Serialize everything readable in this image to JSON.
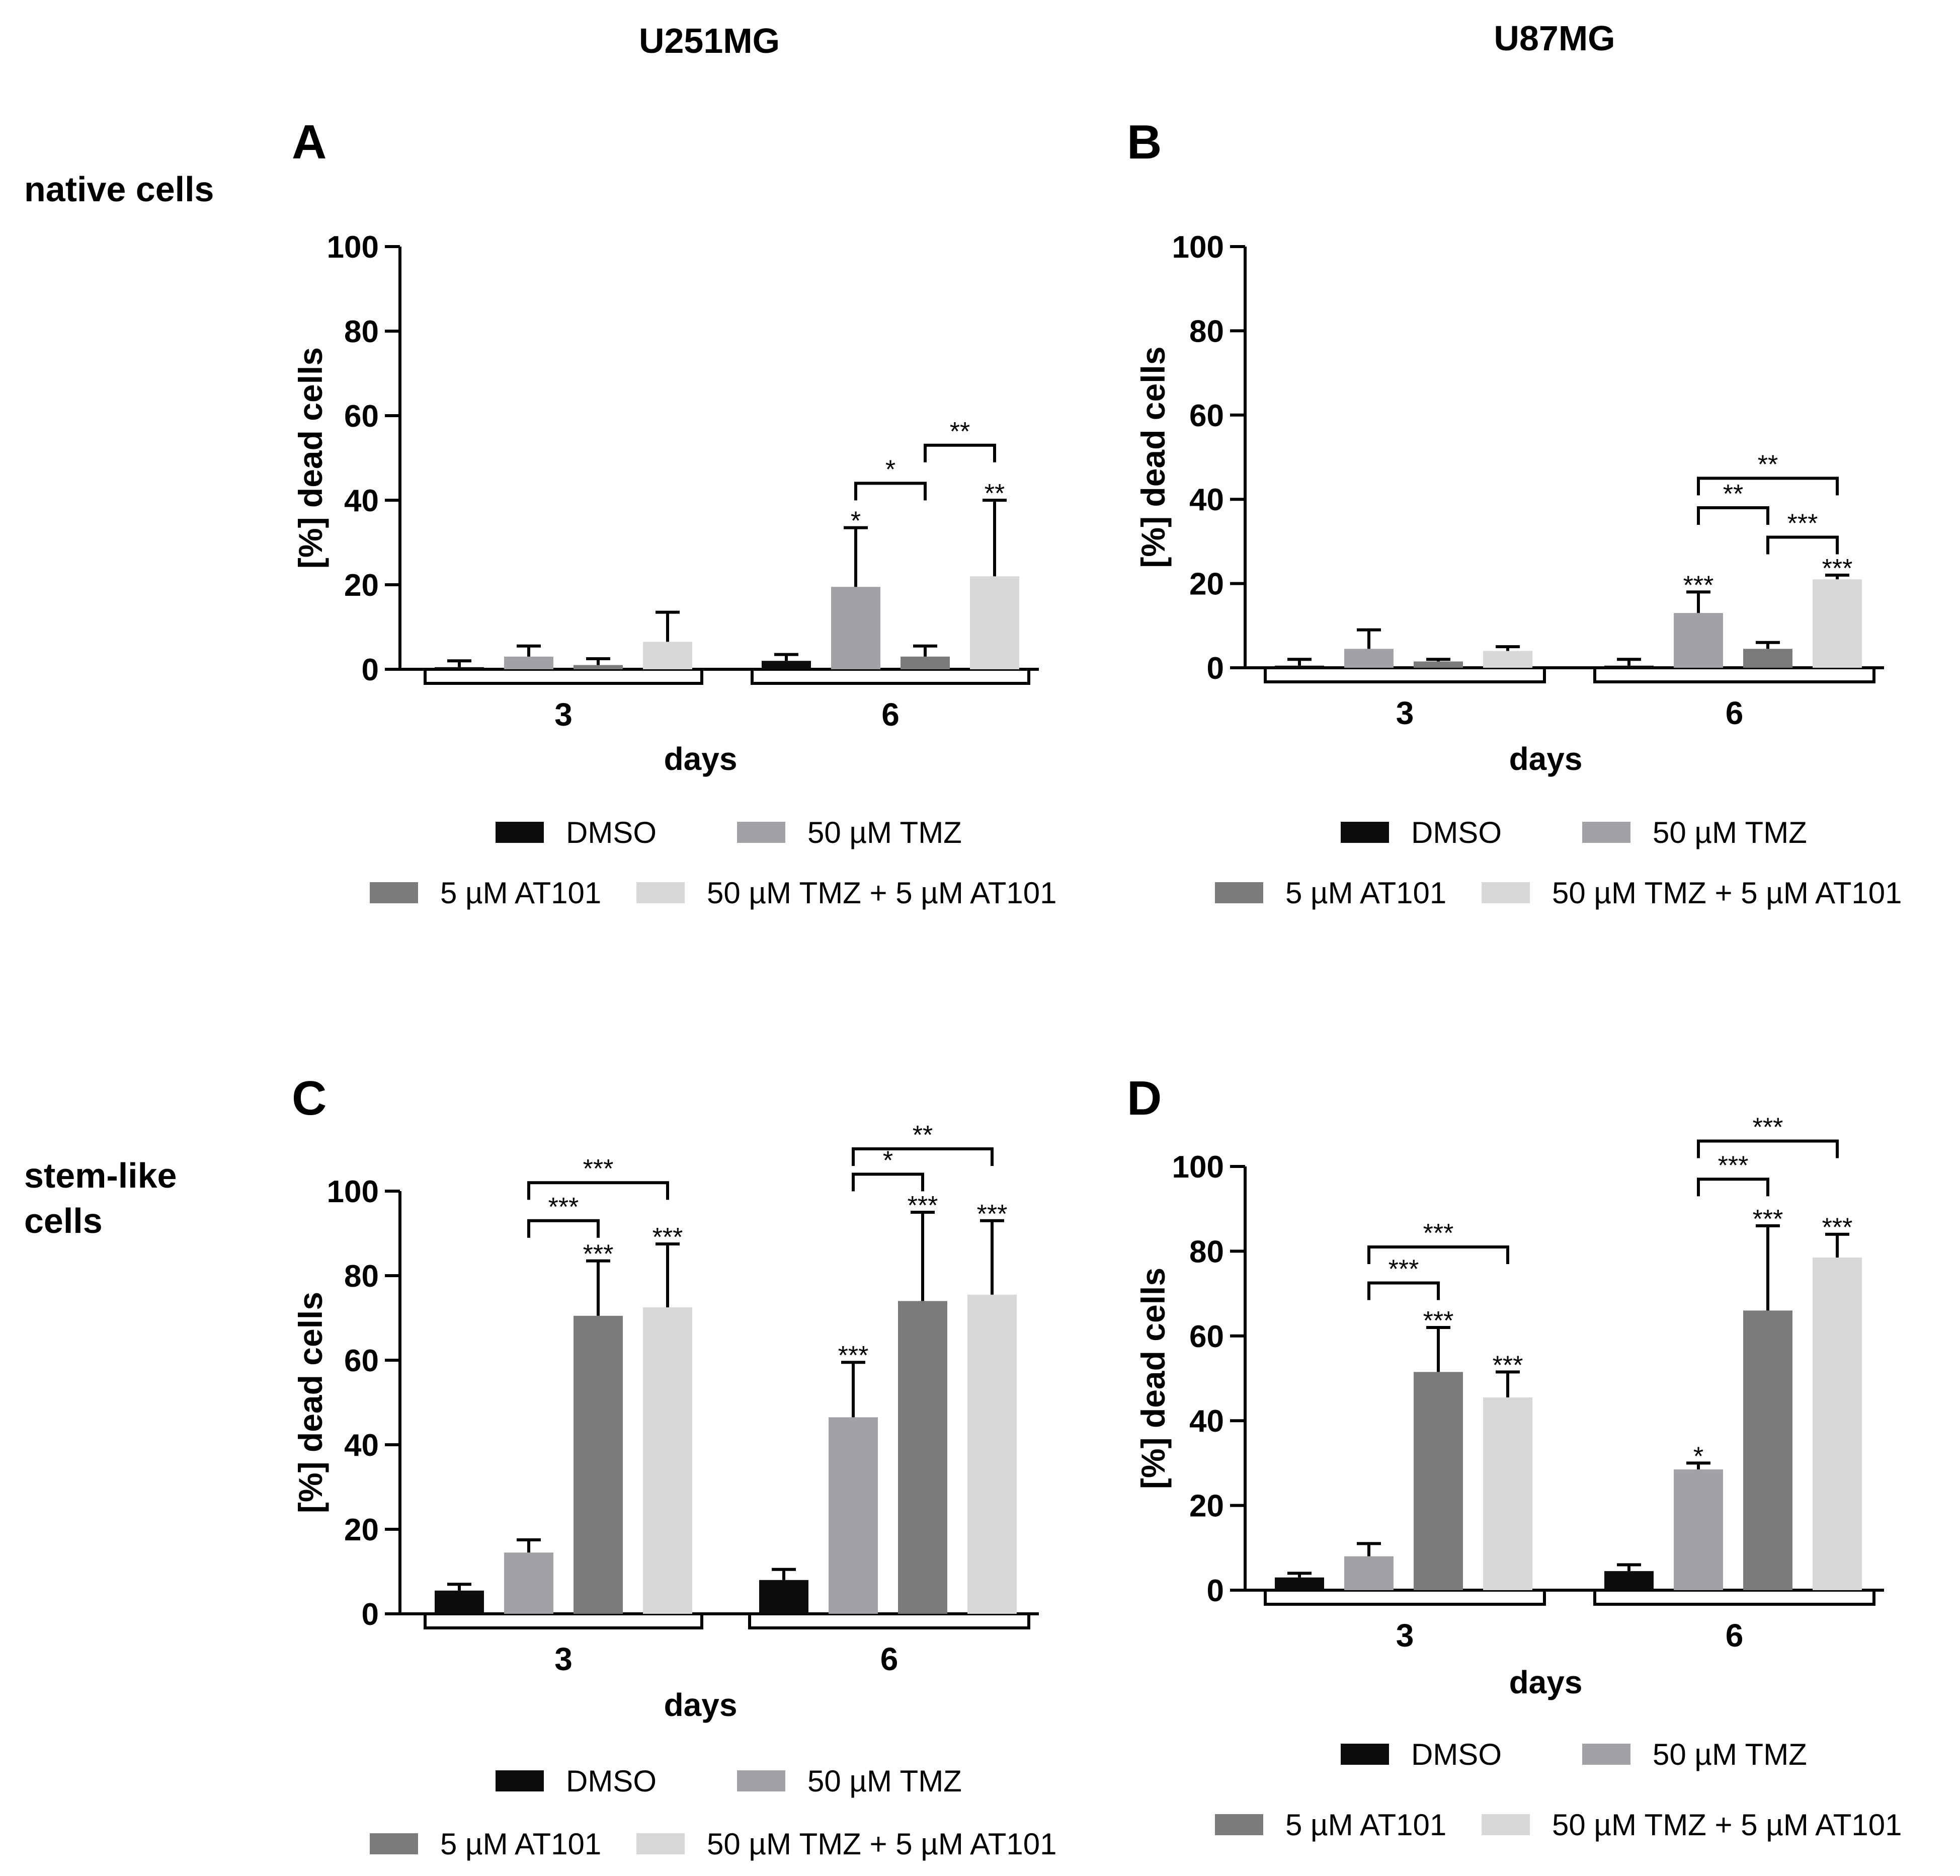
{
  "figure": {
    "column_titles": [
      "U251MG",
      "U87MG"
    ],
    "row_titles": [
      [
        "native cells"
      ],
      [
        "stem-like",
        "cells"
      ]
    ],
    "legend_labels": [
      "DMSO",
      "50 µM TMZ",
      "5 µM AT101",
      "50 µM TMZ + 5 µM AT101"
    ]
  },
  "colors": {
    "series": [
      "#0d0d0d",
      "#a2a2a6",
      "#7b7b7b",
      "#d8d8d8"
    ],
    "axis": "#000000"
  },
  "chart_data": [
    {
      "panel": "A",
      "type": "bar",
      "ylabel": "[%] dead cells",
      "xlabel": "days",
      "ylim": [
        0,
        100
      ],
      "yticks": [
        0,
        20,
        40,
        60,
        80,
        100
      ],
      "categories": [
        "3",
        "6"
      ],
      "series": [
        {
          "name": "DMSO",
          "values": [
            0.5,
            2
          ],
          "errors": [
            1.5,
            1.5
          ],
          "sig": [
            "",
            ""
          ]
        },
        {
          "name": "50 µM TMZ",
          "values": [
            3,
            19.5
          ],
          "errors": [
            2.5,
            14
          ],
          "sig": [
            "",
            "*"
          ]
        },
        {
          "name": "5 µM AT101",
          "values": [
            1,
            3
          ],
          "errors": [
            1.5,
            2.5
          ],
          "sig": [
            "",
            ""
          ]
        },
        {
          "name": "50 µM TMZ + 5 µM AT101",
          "values": [
            6.5,
            22
          ],
          "errors": [
            7,
            18
          ],
          "sig": [
            "",
            "**"
          ]
        }
      ],
      "brackets": [
        {
          "group": 1,
          "from": 1,
          "to": 2,
          "level": 44,
          "label": "*"
        },
        {
          "group": 1,
          "from": 2,
          "to": 3,
          "level": 53,
          "label": "**"
        }
      ]
    },
    {
      "panel": "B",
      "type": "bar",
      "ylabel": "[%] dead cells",
      "xlabel": "days",
      "ylim": [
        0,
        100
      ],
      "yticks": [
        0,
        20,
        40,
        60,
        80,
        100
      ],
      "categories": [
        "3",
        "6"
      ],
      "series": [
        {
          "name": "DMSO",
          "values": [
            0.5,
            0.5
          ],
          "errors": [
            1.5,
            1.5
          ],
          "sig": [
            "",
            ""
          ]
        },
        {
          "name": "50 µM TMZ",
          "values": [
            4.5,
            13
          ],
          "errors": [
            4.5,
            5
          ],
          "sig": [
            "",
            "***"
          ]
        },
        {
          "name": "5 µM AT101",
          "values": [
            1.5,
            4.5
          ],
          "errors": [
            0.5,
            1.5
          ],
          "sig": [
            "",
            ""
          ]
        },
        {
          "name": "50 µM TMZ + 5 µM AT101",
          "values": [
            4,
            21
          ],
          "errors": [
            1,
            1
          ],
          "sig": [
            "",
            "***"
          ]
        }
      ],
      "brackets": [
        {
          "group": 1,
          "from": 2,
          "to": 3,
          "level": 31,
          "label": "***"
        },
        {
          "group": 1,
          "from": 1,
          "to": 2,
          "level": 38,
          "label": "**"
        },
        {
          "group": 1,
          "from": 1,
          "to": 3,
          "level": 45,
          "label": "**"
        }
      ]
    },
    {
      "panel": "C",
      "type": "bar",
      "ylabel": "[%] dead cells",
      "xlabel": "days",
      "ylim": [
        0,
        100
      ],
      "yticks": [
        0,
        20,
        40,
        60,
        80,
        100
      ],
      "categories": [
        "3",
        "6"
      ],
      "series": [
        {
          "name": "DMSO",
          "values": [
            5.5,
            8
          ],
          "errors": [
            1.5,
            2.5
          ],
          "sig": [
            "",
            ""
          ]
        },
        {
          "name": "50 µM TMZ",
          "values": [
            14.5,
            46.5
          ],
          "errors": [
            3,
            13
          ],
          "sig": [
            "",
            "***"
          ]
        },
        {
          "name": "5 µM AT101",
          "values": [
            70.5,
            74
          ],
          "errors": [
            13,
            21
          ],
          "sig": [
            "***",
            "***"
          ]
        },
        {
          "name": "50 µM TMZ + 5 µM AT101",
          "values": [
            72.5,
            75.5
          ],
          "errors": [
            15,
            17.5
          ],
          "sig": [
            "***",
            "***"
          ]
        }
      ],
      "brackets": [
        {
          "group": 0,
          "from": 1,
          "to": 2,
          "level": 93,
          "label": "***"
        },
        {
          "group": 0,
          "from": 1,
          "to": 3,
          "level": 102,
          "label": "***"
        },
        {
          "group": 1,
          "from": 1,
          "to": 2,
          "level": 104,
          "label": "*"
        },
        {
          "group": 1,
          "from": 1,
          "to": 3,
          "level": 110,
          "label": "**"
        }
      ]
    },
    {
      "panel": "D",
      "type": "bar",
      "ylabel": "[%] dead cells",
      "xlabel": "days",
      "ylim": [
        0,
        100
      ],
      "yticks": [
        0,
        20,
        40,
        60,
        80,
        100
      ],
      "categories": [
        "3",
        "6"
      ],
      "series": [
        {
          "name": "DMSO",
          "values": [
            3,
            4.5
          ],
          "errors": [
            1,
            1.5
          ],
          "sig": [
            "",
            ""
          ]
        },
        {
          "name": "50 µM TMZ",
          "values": [
            8,
            28.5
          ],
          "errors": [
            3,
            1.5
          ],
          "sig": [
            "",
            "*"
          ]
        },
        {
          "name": "5 µM AT101",
          "values": [
            51.5,
            66
          ],
          "errors": [
            10.5,
            20
          ],
          "sig": [
            "***",
            "***"
          ]
        },
        {
          "name": "50 µM TMZ + 5 µM AT101",
          "values": [
            45.5,
            78.5
          ],
          "errors": [
            6,
            5.5
          ],
          "sig": [
            "***",
            "***"
          ]
        }
      ],
      "brackets": [
        {
          "group": 0,
          "from": 1,
          "to": 2,
          "level": 72.5,
          "label": "***"
        },
        {
          "group": 0,
          "from": 1,
          "to": 3,
          "level": 81,
          "label": "***"
        },
        {
          "group": 1,
          "from": 1,
          "to": 2,
          "level": 97,
          "label": "***"
        },
        {
          "group": 1,
          "from": 1,
          "to": 3,
          "level": 106,
          "label": "***"
        }
      ]
    }
  ]
}
